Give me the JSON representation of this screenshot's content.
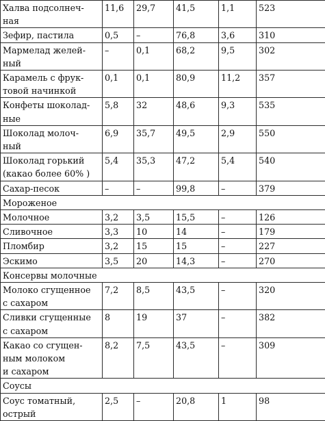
{
  "rows": [
    {
      "type": "item",
      "name": "Халва подсолнеч-\nная",
      "v": [
        "11,6",
        "29,7",
        "41,5",
        "1,1",
        "523"
      ]
    },
    {
      "type": "item",
      "name": "Зефир, пастила",
      "v": [
        "0,5",
        "–",
        "76,8",
        "3,6",
        "310"
      ]
    },
    {
      "type": "item",
      "name": "Мармелад желей-\nный",
      "v": [
        "–",
        "0,1",
        "68,2",
        "9,5",
        "302"
      ]
    },
    {
      "type": "item",
      "name": "Карамель с фрук-\nтовой начинкой",
      "v": [
        "0,1",
        "0,1",
        "80,9",
        "11,2",
        "357"
      ]
    },
    {
      "type": "item",
      "name": "Конфеты шоколад-\nные",
      "v": [
        "5,8",
        "32",
        "48,6",
        "9,3",
        "535"
      ]
    },
    {
      "type": "item",
      "name": "Шоколад молоч-\nный",
      "v": [
        "6,9",
        "35,7",
        "49,5",
        "2,9",
        "550"
      ]
    },
    {
      "type": "item",
      "name": "Шоколад горький\n(какао более 60% )",
      "v": [
        "5,4",
        "35,3",
        "47,2",
        "5,4",
        "540"
      ]
    },
    {
      "type": "item",
      "name": "Сахар-песок",
      "v": [
        "–",
        "–",
        "99,8",
        "–",
        "379"
      ]
    },
    {
      "type": "section",
      "name": "Мороженое"
    },
    {
      "type": "item",
      "name": "Молочное",
      "v": [
        "3,2",
        "3,5",
        "15,5",
        "–",
        "126"
      ]
    },
    {
      "type": "item",
      "name": "Сливочное",
      "v": [
        "3,3",
        "10",
        "14",
        "–",
        "179"
      ]
    },
    {
      "type": "item",
      "name": "Пломбир",
      "v": [
        "3,2",
        "15",
        "15",
        "–",
        "227"
      ]
    },
    {
      "type": "item",
      "name": "Эскимо",
      "v": [
        "3,5",
        "20",
        "14,3",
        "–",
        "270"
      ]
    },
    {
      "type": "section",
      "name": "Консервы молочные"
    },
    {
      "type": "item",
      "name": "Молоко сгущенное\nс сахаром",
      "v": [
        "7,2",
        "8,5",
        "43,5",
        "–",
        "320"
      ]
    },
    {
      "type": "item",
      "name": "Сливки сгущенные\nс сахаром",
      "v": [
        "8",
        "19",
        "37",
        "–",
        "382"
      ]
    },
    {
      "type": "item",
      "name": "Какао со сгущен-\nным молоком\nи сахаром",
      "v": [
        "8,2",
        "7,5",
        "43,5",
        "–",
        "309"
      ]
    },
    {
      "type": "section",
      "name": "Соусы"
    },
    {
      "type": "item",
      "name": "Соус томатный,\nострый",
      "v": [
        "2,5",
        "–",
        "20,8",
        "1",
        "98"
      ]
    }
  ]
}
